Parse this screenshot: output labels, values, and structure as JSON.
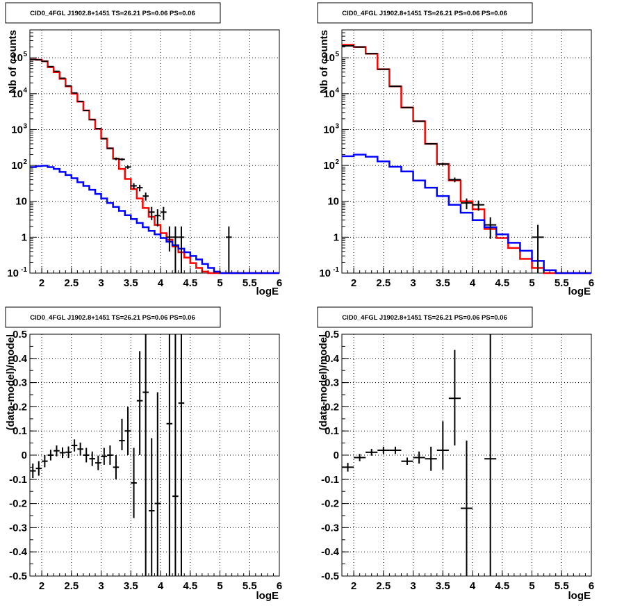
{
  "chart_data": [
    {
      "type": "line",
      "title": "CID0_4FGL J1902.8+1451 TS=26.21 PS=0.06 PS=0.06",
      "xlabel": "logE",
      "ylabel": "Nb of counts",
      "ylog": true,
      "xlim": [
        1.8,
        6.0
      ],
      "ylim": [
        0.1,
        600000
      ],
      "grid": true,
      "x_ticks": [
        "2",
        "2.5",
        "3",
        "3.5",
        "4",
        "4.5",
        "5",
        "5.5",
        "6"
      ],
      "y_ticks": [
        "10-1",
        "1",
        "10",
        "102",
        "103",
        "104",
        "105"
      ],
      "series": [
        {
          "color": "#ff0000",
          "edges": [
            1.8,
            1.9,
            2.0,
            2.1,
            2.2,
            2.3,
            2.4,
            2.5,
            2.6,
            2.7,
            2.8,
            2.9,
            3.0,
            3.1,
            3.2,
            3.3,
            3.4,
            3.5,
            3.6,
            3.7,
            3.8,
            3.9,
            4.0,
            4.1,
            4.2,
            4.3,
            4.4,
            4.5,
            4.6,
            4.7,
            4.8,
            4.9,
            5.0,
            5.1,
            5.2,
            5.3,
            5.4,
            5.5,
            5.6,
            5.7,
            5.8,
            5.9,
            6.0
          ],
          "values": [
            90000,
            88000,
            80000,
            55000,
            40000,
            26000,
            16000,
            10000,
            6000,
            3400,
            1900,
            1050,
            560,
            300,
            155,
            80,
            42,
            22,
            12,
            6.5,
            3.7,
            2.2,
            1.3,
            0.85,
            0.55,
            0.38,
            0.27,
            0.19,
            0.14,
            0.11,
            0.1,
            0.1,
            0.1,
            0.1,
            0.1,
            0.1,
            0.1,
            0.1,
            0.1,
            0.1,
            0.1,
            0.1
          ]
        },
        {
          "color": "#0000ff",
          "edges": [
            1.8,
            1.9,
            2.0,
            2.1,
            2.2,
            2.3,
            2.4,
            2.5,
            2.6,
            2.7,
            2.8,
            2.9,
            3.0,
            3.1,
            3.2,
            3.3,
            3.4,
            3.5,
            3.6,
            3.7,
            3.8,
            3.9,
            4.0,
            4.1,
            4.2,
            4.3,
            4.4,
            4.5,
            4.6,
            4.7,
            4.8,
            4.9,
            5.0,
            5.1,
            5.2,
            5.3,
            5.4,
            5.5,
            5.6,
            5.7,
            5.8,
            5.9,
            6.0
          ],
          "values": [
            90,
            96,
            98,
            90,
            80,
            66,
            54,
            44,
            34,
            27,
            21,
            16,
            12,
            9,
            7,
            5.4,
            4.1,
            3.2,
            2.5,
            1.9,
            1.5,
            1.2,
            0.95,
            0.75,
            0.6,
            0.48,
            0.38,
            0.3,
            0.24,
            0.18,
            0.14,
            0.11,
            0.1,
            0.1,
            0.1,
            0.1,
            0.1,
            0.1,
            0.1,
            0.1,
            0.1,
            0.1
          ]
        }
      ],
      "points": [
        {
          "x": 1.85,
          "y": 90000,
          "lo": 89500,
          "hi": 90500
        },
        {
          "x": 1.95,
          "y": 88000,
          "lo": 87500,
          "hi": 88500
        },
        {
          "x": 2.05,
          "y": 80000,
          "lo": 79500,
          "hi": 80500
        },
        {
          "x": 2.15,
          "y": 57000,
          "lo": 56600,
          "hi": 57400
        },
        {
          "x": 2.25,
          "y": 42000,
          "lo": 41600,
          "hi": 42400
        },
        {
          "x": 2.35,
          "y": 27000,
          "lo": 26700,
          "hi": 27300
        },
        {
          "x": 2.45,
          "y": 16500,
          "lo": 16300,
          "hi": 16700
        },
        {
          "x": 2.55,
          "y": 10500,
          "lo": 10300,
          "hi": 10700
        },
        {
          "x": 2.65,
          "y": 6100,
          "lo": 6000,
          "hi": 6200
        },
        {
          "x": 2.75,
          "y": 3400,
          "lo": 3340,
          "hi": 3460
        },
        {
          "x": 2.85,
          "y": 1880,
          "lo": 1840,
          "hi": 1920
        },
        {
          "x": 2.95,
          "y": 1060,
          "lo": 1030,
          "hi": 1090
        },
        {
          "x": 3.05,
          "y": 560,
          "lo": 540,
          "hi": 580
        },
        {
          "x": 3.15,
          "y": 300,
          "lo": 285,
          "hi": 315
        },
        {
          "x": 3.25,
          "y": 153,
          "lo": 140,
          "hi": 166
        },
        {
          "x": 3.35,
          "y": 148,
          "lo": 136,
          "hi": 160
        },
        {
          "x": 3.45,
          "y": 90,
          "lo": 81,
          "hi": 99
        },
        {
          "x": 3.55,
          "y": 27,
          "lo": 22,
          "hi": 32
        },
        {
          "x": 3.65,
          "y": 24,
          "lo": 19,
          "hi": 29
        },
        {
          "x": 3.75,
          "y": 14,
          "lo": 10.5,
          "hi": 17.5
        },
        {
          "x": 3.85,
          "y": 5,
          "lo": 3,
          "hi": 7
        },
        {
          "x": 3.95,
          "y": 4,
          "lo": 2,
          "hi": 6
        },
        {
          "x": 4.05,
          "y": 5,
          "lo": 3,
          "hi": 7
        },
        {
          "x": 4.15,
          "y": 1,
          "lo": 0.4,
          "hi": 2
        },
        {
          "x": 4.25,
          "y": 1,
          "lo": 0.1,
          "hi": 2
        },
        {
          "x": 4.35,
          "y": 1,
          "lo": 0.1,
          "hi": 2
        },
        {
          "x": 5.15,
          "y": 1,
          "lo": 0.1,
          "hi": 2
        }
      ]
    },
    {
      "type": "line",
      "title": "CID0_4FGL J1902.8+1451 TS=26.21 PS=0.06 PS=0.06",
      "xlabel": "logE",
      "ylabel": "Nb of counts",
      "ylog": true,
      "xlim": [
        1.8,
        6.0
      ],
      "ylim": [
        0.1,
        600000
      ],
      "grid": true,
      "x_ticks": [
        "2",
        "2.5",
        "3",
        "3.5",
        "4",
        "4.5",
        "5",
        "5.5",
        "6"
      ],
      "y_ticks": [
        "10-1",
        "1",
        "10",
        "102",
        "103",
        "104",
        "105"
      ],
      "series": [
        {
          "color": "#ff0000",
          "edges": [
            1.8,
            2.0,
            2.2,
            2.4,
            2.6,
            2.8,
            3.0,
            3.2,
            3.4,
            3.6,
            3.8,
            4.0,
            4.2,
            4.4,
            4.6,
            4.8,
            5.0,
            5.2,
            5.4,
            5.6,
            5.8,
            6.0
          ],
          "values": [
            230000,
            200000,
            130000,
            48000,
            16000,
            4100,
            1700,
            400,
            110,
            38,
            10,
            6,
            1.7,
            0.95,
            0.5,
            0.25,
            0.14,
            0.1,
            0.1,
            0.1,
            0.1
          ]
        },
        {
          "color": "#0000ff",
          "edges": [
            1.8,
            2.0,
            2.2,
            2.4,
            2.6,
            2.8,
            3.0,
            3.2,
            3.4,
            3.6,
            3.8,
            4.0,
            4.2,
            4.4,
            4.6,
            4.8,
            5.0,
            5.2,
            5.4,
            5.6,
            5.8,
            6.0
          ],
          "values": [
            180,
            200,
            175,
            130,
            92,
            68,
            38,
            24,
            14,
            8,
            4.8,
            3,
            1.9,
            1.2,
            0.7,
            0.42,
            0.22,
            0.12,
            0.1,
            0.1,
            0.1
          ]
        }
      ],
      "points": [
        {
          "x": 1.9,
          "y": 215000,
          "lo": 214000,
          "hi": 216000
        },
        {
          "x": 2.1,
          "y": 200000,
          "lo": 199000,
          "hi": 201000
        },
        {
          "x": 2.3,
          "y": 130000,
          "lo": 129400,
          "hi": 130600
        },
        {
          "x": 2.5,
          "y": 48000,
          "lo": 47600,
          "hi": 48400
        },
        {
          "x": 2.7,
          "y": 16000,
          "lo": 15800,
          "hi": 16200
        },
        {
          "x": 2.9,
          "y": 4100,
          "lo": 4040,
          "hi": 4160
        },
        {
          "x": 3.1,
          "y": 1700,
          "lo": 1660,
          "hi": 1740
        },
        {
          "x": 3.3,
          "y": 400,
          "lo": 380,
          "hi": 420
        },
        {
          "x": 3.5,
          "y": 110,
          "lo": 100,
          "hi": 120
        },
        {
          "x": 3.7,
          "y": 40,
          "lo": 34,
          "hi": 46
        },
        {
          "x": 3.9,
          "y": 9,
          "lo": 6,
          "hi": 12
        },
        {
          "x": 4.1,
          "y": 8,
          "lo": 5.5,
          "hi": 10.5
        },
        {
          "x": 4.3,
          "y": 2.2,
          "lo": 0.9,
          "hi": 3.6
        },
        {
          "x": 5.1,
          "y": 1,
          "lo": 0.1,
          "hi": 2.2
        }
      ]
    },
    {
      "type": "scatter",
      "title": "CID0_4FGL J1902.8+1451 TS=26.21 PS=0.06 PS=0.06",
      "xlabel": "logE",
      "ylabel": "(data-model)/model",
      "xlim": [
        1.8,
        6.0
      ],
      "ylim": [
        -0.5,
        0.5
      ],
      "grid": true,
      "x_ticks": [
        "2",
        "2.5",
        "3",
        "3.5",
        "4",
        "4.5",
        "5",
        "5.5",
        "6"
      ],
      "y_ticks": [
        "-0.5",
        "-0.4",
        "-0.3",
        "-0.2",
        "-0.1",
        "0",
        "0.1",
        "0.2",
        "0.3",
        "0.4",
        "0.5"
      ],
      "points": [
        {
          "x": 1.85,
          "y": -0.065,
          "lo": -0.095,
          "hi": -0.035,
          "xerr": 0.05
        },
        {
          "x": 1.95,
          "y": -0.055,
          "lo": -0.085,
          "hi": -0.025,
          "xerr": 0.05
        },
        {
          "x": 2.05,
          "y": -0.025,
          "lo": -0.05,
          "hi": 0.0,
          "xerr": 0.05
        },
        {
          "x": 2.15,
          "y": 0.0,
          "lo": -0.022,
          "hi": 0.022,
          "xerr": 0.05
        },
        {
          "x": 2.25,
          "y": 0.018,
          "lo": -0.005,
          "hi": 0.04,
          "xerr": 0.05
        },
        {
          "x": 2.35,
          "y": 0.01,
          "lo": -0.012,
          "hi": 0.032,
          "xerr": 0.05
        },
        {
          "x": 2.45,
          "y": 0.012,
          "lo": -0.012,
          "hi": 0.036,
          "xerr": 0.05
        },
        {
          "x": 2.55,
          "y": 0.04,
          "lo": 0.015,
          "hi": 0.065,
          "xerr": 0.05
        },
        {
          "x": 2.65,
          "y": 0.025,
          "lo": -0.002,
          "hi": 0.052,
          "xerr": 0.05
        },
        {
          "x": 2.75,
          "y": 0.0,
          "lo": -0.03,
          "hi": 0.03,
          "xerr": 0.05
        },
        {
          "x": 2.85,
          "y": -0.015,
          "lo": -0.045,
          "hi": 0.015,
          "xerr": 0.05
        },
        {
          "x": 2.95,
          "y": -0.032,
          "lo": -0.062,
          "hi": -0.002,
          "xerr": 0.05
        },
        {
          "x": 3.05,
          "y": -0.005,
          "lo": -0.04,
          "hi": 0.03,
          "xerr": 0.05
        },
        {
          "x": 3.15,
          "y": 0.0,
          "lo": -0.04,
          "hi": 0.04,
          "xerr": 0.05
        },
        {
          "x": 3.25,
          "y": -0.05,
          "lo": -0.1,
          "hi": 0.0,
          "xerr": 0.05
        },
        {
          "x": 3.35,
          "y": 0.06,
          "lo": 0.02,
          "hi": 0.15,
          "xerr": 0.05
        },
        {
          "x": 3.45,
          "y": 0.1,
          "lo": 0.0,
          "hi": 0.2,
          "xerr": 0.05
        },
        {
          "x": 3.55,
          "y": -0.115,
          "lo": -0.26,
          "hi": 0.03,
          "xerr": 0.05
        },
        {
          "x": 3.65,
          "y": 0.225,
          "lo": 0.0,
          "hi": 0.43,
          "xerr": 0.05
        },
        {
          "x": 3.75,
          "y": 0.26,
          "lo": -0.5,
          "hi": 0.5,
          "xerr": 0.05
        },
        {
          "x": 3.85,
          "y": -0.23,
          "lo": -0.5,
          "hi": 0.07,
          "xerr": 0.05
        },
        {
          "x": 3.95,
          "y": -0.2,
          "lo": -0.5,
          "hi": 0.26,
          "xerr": 0.05
        },
        {
          "x": 4.15,
          "y": 0.13,
          "lo": -0.5,
          "hi": 0.5,
          "xerr": 0.05
        },
        {
          "x": 4.25,
          "y": -0.17,
          "lo": -0.5,
          "hi": 0.5,
          "xerr": 0.05
        },
        {
          "x": 4.35,
          "y": 0.215,
          "lo": -0.5,
          "hi": 0.5,
          "xerr": 0.05
        }
      ]
    },
    {
      "type": "scatter",
      "title": "CID0_4FGL J1902.8+1451 TS=26.21 PS=0.06 PS=0.06",
      "xlabel": "logE",
      "ylabel": "(data-model)/model",
      "xlim": [
        1.8,
        6.0
      ],
      "ylim": [
        -0.5,
        0.5
      ],
      "grid": true,
      "x_ticks": [
        "2",
        "2.5",
        "3",
        "3.5",
        "4",
        "4.5",
        "5",
        "5.5",
        "6"
      ],
      "y_ticks": [
        "-0.5",
        "-0.4",
        "-0.3",
        "-0.2",
        "-0.1",
        "0",
        "0.1",
        "0.2",
        "0.3",
        "0.4",
        "0.5"
      ],
      "points": [
        {
          "x": 1.9,
          "y": -0.05,
          "lo": -0.068,
          "hi": -0.032,
          "xerr": 0.1
        },
        {
          "x": 2.1,
          "y": -0.01,
          "lo": -0.025,
          "hi": 0.005,
          "xerr": 0.1
        },
        {
          "x": 2.3,
          "y": 0.012,
          "lo": -0.002,
          "hi": 0.026,
          "xerr": 0.1
        },
        {
          "x": 2.5,
          "y": 0.02,
          "lo": 0.005,
          "hi": 0.035,
          "xerr": 0.1
        },
        {
          "x": 2.7,
          "y": 0.02,
          "lo": 0.005,
          "hi": 0.035,
          "xerr": 0.1
        },
        {
          "x": 2.9,
          "y": -0.025,
          "lo": -0.04,
          "hi": -0.01,
          "xerr": 0.1
        },
        {
          "x": 3.1,
          "y": -0.01,
          "lo": -0.035,
          "hi": 0.015,
          "xerr": 0.1
        },
        {
          "x": 3.3,
          "y": -0.015,
          "lo": -0.065,
          "hi": 0.035,
          "xerr": 0.1
        },
        {
          "x": 3.5,
          "y": 0.02,
          "lo": -0.06,
          "hi": 0.14,
          "xerr": 0.1
        },
        {
          "x": 3.7,
          "y": 0.235,
          "lo": 0.04,
          "hi": 0.435,
          "xerr": 0.1
        },
        {
          "x": 3.9,
          "y": -0.22,
          "lo": -0.5,
          "hi": 0.06,
          "xerr": 0.1
        },
        {
          "x": 4.3,
          "y": -0.015,
          "lo": -0.5,
          "hi": 0.5,
          "xerr": 0.1
        }
      ]
    }
  ]
}
